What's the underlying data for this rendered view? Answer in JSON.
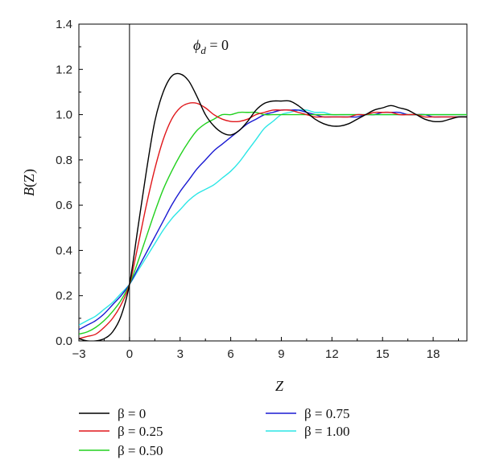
{
  "chart_data": {
    "type": "line",
    "title": "",
    "annotation": {
      "symbol": "ϕ",
      "subscript": "d",
      "rest": " = 0"
    },
    "xlabel": {
      "main": "Z"
    },
    "ylabel": {
      "main": "B",
      "rest": "(Z)"
    },
    "xlim": [
      -3,
      20
    ],
    "ylim": [
      0,
      1.4
    ],
    "xticks": [
      -3,
      0,
      3,
      6,
      9,
      12,
      15,
      18
    ],
    "xtick_labels": [
      "−3",
      "0",
      "3",
      "6",
      "9",
      "12",
      "15",
      "18"
    ],
    "yticks": [
      0,
      0.2,
      0.4,
      0.6,
      0.8,
      1.0,
      1.2,
      1.4
    ],
    "ytick_labels": [
      "0.0",
      "0.2",
      "0.4",
      "0.6",
      "0.8",
      "1.0",
      "1.2",
      "1.4"
    ],
    "vertical_line_x": 0,
    "grid": false,
    "legend_placement": "bottom",
    "series": [
      {
        "name": "β = 0",
        "color": "#000000",
        "x": [
          -3,
          -2.5,
          -2,
          -1.5,
          -1,
          -0.5,
          0,
          0.5,
          1,
          1.5,
          2,
          2.5,
          3,
          3.5,
          4,
          4.5,
          5,
          5.5,
          6,
          6.5,
          7,
          7.5,
          8,
          8.5,
          9,
          9.5,
          10,
          10.5,
          11,
          11.5,
          12,
          12.5,
          13,
          13.5,
          14,
          14.5,
          15,
          15.5,
          16,
          16.5,
          17,
          17.5,
          18,
          18.5,
          19,
          19.5,
          20
        ],
        "y": [
          0.01,
          0.0,
          0.0,
          0.01,
          0.04,
          0.11,
          0.25,
          0.5,
          0.75,
          0.97,
          1.1,
          1.17,
          1.18,
          1.15,
          1.08,
          1.0,
          0.95,
          0.92,
          0.91,
          0.93,
          0.97,
          1.02,
          1.05,
          1.06,
          1.06,
          1.06,
          1.04,
          1.01,
          0.98,
          0.96,
          0.95,
          0.95,
          0.96,
          0.98,
          1.0,
          1.02,
          1.03,
          1.04,
          1.03,
          1.02,
          1.0,
          0.98,
          0.97,
          0.97,
          0.98,
          0.99,
          0.99
        ]
      },
      {
        "name": "β = 0.25",
        "color": "#e0171b",
        "x": [
          -3,
          -2.5,
          -2,
          -1.5,
          -1,
          -0.5,
          0,
          0.5,
          1,
          1.5,
          2,
          2.5,
          3,
          3.5,
          4,
          4.5,
          5,
          5.5,
          6,
          6.5,
          7,
          7.5,
          8,
          8.5,
          9,
          9.5,
          10,
          10.5,
          11,
          11.5,
          12,
          12.5,
          13,
          13.5,
          14,
          14.5,
          15,
          15.5,
          16,
          16.5,
          17,
          17.5,
          18,
          18.5,
          19,
          19.5,
          20
        ],
        "y": [
          0.01,
          0.02,
          0.03,
          0.06,
          0.1,
          0.16,
          0.25,
          0.42,
          0.6,
          0.76,
          0.89,
          0.98,
          1.03,
          1.05,
          1.05,
          1.03,
          1.0,
          0.98,
          0.97,
          0.97,
          0.98,
          1.0,
          1.01,
          1.02,
          1.02,
          1.02,
          1.01,
          1.0,
          0.99,
          0.99,
          0.99,
          0.99,
          0.99,
          1.0,
          1.0,
          1.01,
          1.01,
          1.01,
          1.0,
          1.0,
          1.0,
          0.99,
          0.99,
          0.99,
          0.99,
          0.99,
          0.99
        ]
      },
      {
        "name": "β = 0.50",
        "color": "#22d11f",
        "x": [
          -3,
          -2.5,
          -2,
          -1.5,
          -1,
          -0.5,
          0,
          0.5,
          1,
          1.5,
          2,
          2.5,
          3,
          3.5,
          4,
          4.5,
          5,
          5.5,
          6,
          6.5,
          7,
          7.5,
          8,
          8.5,
          9,
          9.5,
          10,
          11,
          12,
          13,
          14,
          15,
          16,
          17,
          18,
          19,
          20
        ],
        "y": [
          0.03,
          0.04,
          0.06,
          0.09,
          0.13,
          0.18,
          0.25,
          0.35,
          0.46,
          0.57,
          0.67,
          0.75,
          0.82,
          0.88,
          0.93,
          0.96,
          0.98,
          1.0,
          1.0,
          1.01,
          1.01,
          1.01,
          1.0,
          1.0,
          1.0,
          1.0,
          1.0,
          1.0,
          1.0,
          1.0,
          1.0,
          1.0,
          1.0,
          1.0,
          1.0,
          1.0,
          1.0
        ]
      },
      {
        "name": "β = 0.75",
        "color": "#1a1ad2",
        "x": [
          -3,
          -2.5,
          -2,
          -1.5,
          -1,
          -0.5,
          0,
          0.5,
          1,
          1.5,
          2,
          2.5,
          3,
          3.5,
          4,
          4.5,
          5,
          5.5,
          6,
          6.5,
          7,
          7.5,
          8,
          8.5,
          9,
          9.5,
          10,
          10.5,
          11,
          11.5,
          12,
          12.5,
          13,
          13.5,
          14,
          14.5,
          15,
          15.5,
          16,
          16.5,
          17,
          17.5,
          18,
          18.5,
          19,
          19.5,
          20
        ],
        "y": [
          0.05,
          0.07,
          0.09,
          0.12,
          0.16,
          0.2,
          0.25,
          0.32,
          0.39,
          0.46,
          0.53,
          0.6,
          0.66,
          0.71,
          0.76,
          0.8,
          0.84,
          0.87,
          0.9,
          0.93,
          0.96,
          0.98,
          1.0,
          1.01,
          1.02,
          1.02,
          1.02,
          1.01,
          1.0,
          0.99,
          0.99,
          0.99,
          0.99,
          0.99,
          1.0,
          1.0,
          1.01,
          1.01,
          1.01,
          1.0,
          1.0,
          1.0,
          0.99,
          0.99,
          0.99,
          0.99,
          0.99
        ]
      },
      {
        "name": "β = 1.00",
        "color": "#2be6e6",
        "x": [
          -3,
          -2.5,
          -2,
          -1.5,
          -1,
          -0.5,
          0,
          0.5,
          1,
          1.5,
          2,
          2.5,
          3,
          3.5,
          4,
          4.5,
          5,
          5.5,
          6,
          6.5,
          7,
          7.5,
          8,
          8.5,
          9,
          9.5,
          10,
          10.5,
          11,
          11.5,
          12,
          12.5,
          13,
          13.5,
          14,
          14.5,
          15,
          15.5,
          16,
          16.5,
          17,
          17.5,
          18,
          18.5,
          19,
          19.5,
          20
        ],
        "y": [
          0.07,
          0.09,
          0.11,
          0.14,
          0.17,
          0.21,
          0.25,
          0.31,
          0.37,
          0.43,
          0.49,
          0.54,
          0.58,
          0.62,
          0.65,
          0.67,
          0.69,
          0.72,
          0.75,
          0.79,
          0.84,
          0.89,
          0.94,
          0.97,
          1.0,
          1.01,
          1.02,
          1.02,
          1.01,
          1.01,
          1.0,
          1.0,
          1.0,
          1.0,
          1.0,
          1.0,
          1.0,
          1.0,
          1.0,
          1.0,
          1.0,
          1.0,
          1.0,
          1.0,
          1.0,
          1.0,
          1.0
        ]
      }
    ]
  }
}
